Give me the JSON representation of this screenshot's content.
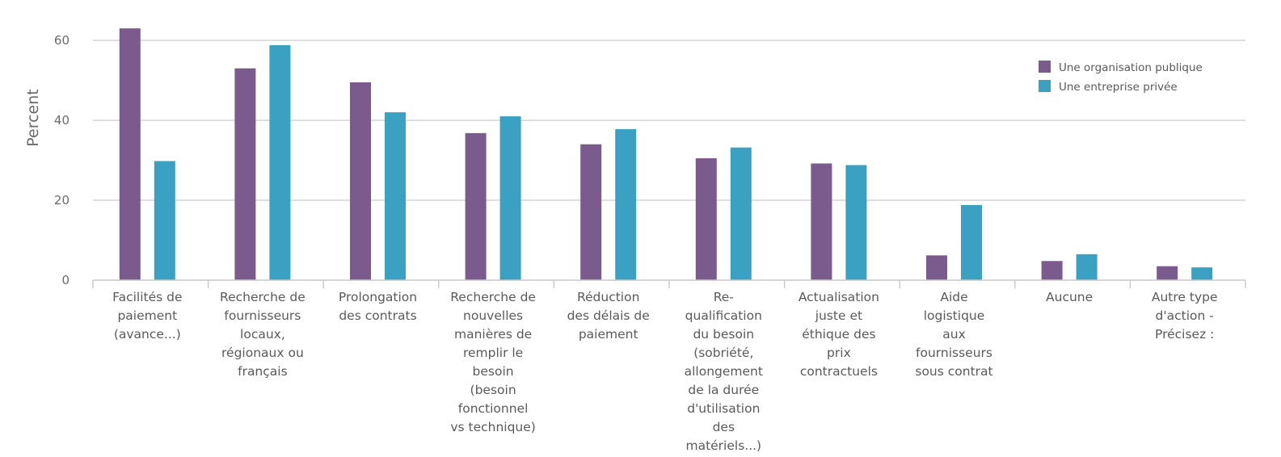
{
  "chart_data": {
    "type": "bar",
    "title": "",
    "xlabel": "",
    "ylabel": "Percent",
    "ylim": [
      0,
      62
    ],
    "yticks": [
      0,
      20,
      40,
      60
    ],
    "grid": true,
    "legend_position": "top-right",
    "categories": [
      [
        "Facilités de",
        "paiement",
        "(avance...)"
      ],
      [
        "Recherche de",
        "fournisseurs",
        "locaux,",
        "régionaux ou",
        "français"
      ],
      [
        "Prolongation",
        "des contrats"
      ],
      [
        "Recherche de",
        "nouvelles",
        "manières de",
        "remplir le",
        "besoin",
        "(besoin",
        "fonctionnel",
        "vs technique)"
      ],
      [
        "Réduction",
        "des délais de",
        "paiement"
      ],
      [
        "Re-",
        "qualification",
        "du besoin",
        "(sobriété,",
        "allongement",
        "de la durée",
        "d'utilisation",
        "des",
        "matériels...)"
      ],
      [
        "Actualisation",
        "juste et",
        "éthique des",
        "prix",
        "contractuels"
      ],
      [
        "Aide",
        "logistique",
        "aux",
        "fournisseurs",
        "sous contrat"
      ],
      [
        "Aucune"
      ],
      [
        "Autre type",
        "d'action -",
        "Précisez :"
      ]
    ],
    "series": [
      {
        "name": "Une organisation publique",
        "color": "#7b5b8d",
        "values": [
          63,
          53,
          49.5,
          36.8,
          34,
          30.5,
          29.2,
          6.2,
          4.8,
          3.5
        ]
      },
      {
        "name": "Une entreprise privée",
        "color": "#3ba1c3",
        "values": [
          29.8,
          58.8,
          42,
          41,
          37.8,
          33.2,
          28.8,
          18.8,
          6.5,
          3.2
        ]
      }
    ]
  }
}
